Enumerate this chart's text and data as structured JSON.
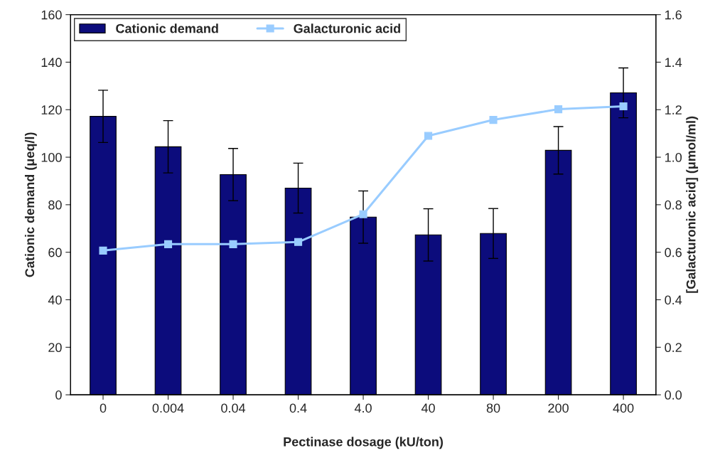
{
  "chart_data": {
    "type": "bar",
    "xlabel": "Pectinase dosage (kU/ton)",
    "ylabel": "Cationic demand (μeq/l)",
    "y2label": "[Galacturonic acid] (μmol/ml)",
    "categories": [
      "0",
      "0.004",
      "0.04",
      "0.4",
      "4.0",
      "40",
      "80",
      "200",
      "400"
    ],
    "series": [
      {
        "name": "Cationic demand",
        "color": "#0c0c7c",
        "values": [
          117.2,
          104.4,
          92.7,
          87,
          74.8,
          67.3,
          67.9,
          102.9,
          127.1
        ],
        "errors": [
          11,
          11,
          11,
          10.5,
          11,
          11,
          10.5,
          10,
          10.5
        ]
      },
      {
        "name": "Galacturonic acid",
        "type": "line",
        "axis": "y2",
        "color": "#99ccff",
        "marker": "square",
        "values": [
          0.607,
          0.634,
          0.634,
          0.643,
          0.76,
          1.09,
          1.157,
          1.202,
          1.214
        ]
      }
    ],
    "ylim": [
      0,
      160
    ],
    "yticks": [
      0,
      20,
      40,
      60,
      80,
      100,
      120,
      140,
      160
    ],
    "y2lim": [
      0,
      1.6
    ],
    "y2ticks": [
      {
        "value": 0,
        "label": "0.0"
      },
      {
        "value": 0.2,
        "label": "0.2"
      },
      {
        "value": 0.4,
        "label": "0.4"
      },
      {
        "value": 0.6,
        "label": "0.6"
      },
      {
        "value": 0.8,
        "label": "0.8"
      },
      {
        "value": 1.0,
        "label": "1.0"
      },
      {
        "value": 1.2,
        "label": "1.2"
      },
      {
        "value": 1.4,
        "label": "1.4"
      },
      {
        "value": 1.6,
        "label": "1.6"
      }
    ],
    "grid": false,
    "legend": "top left"
  }
}
